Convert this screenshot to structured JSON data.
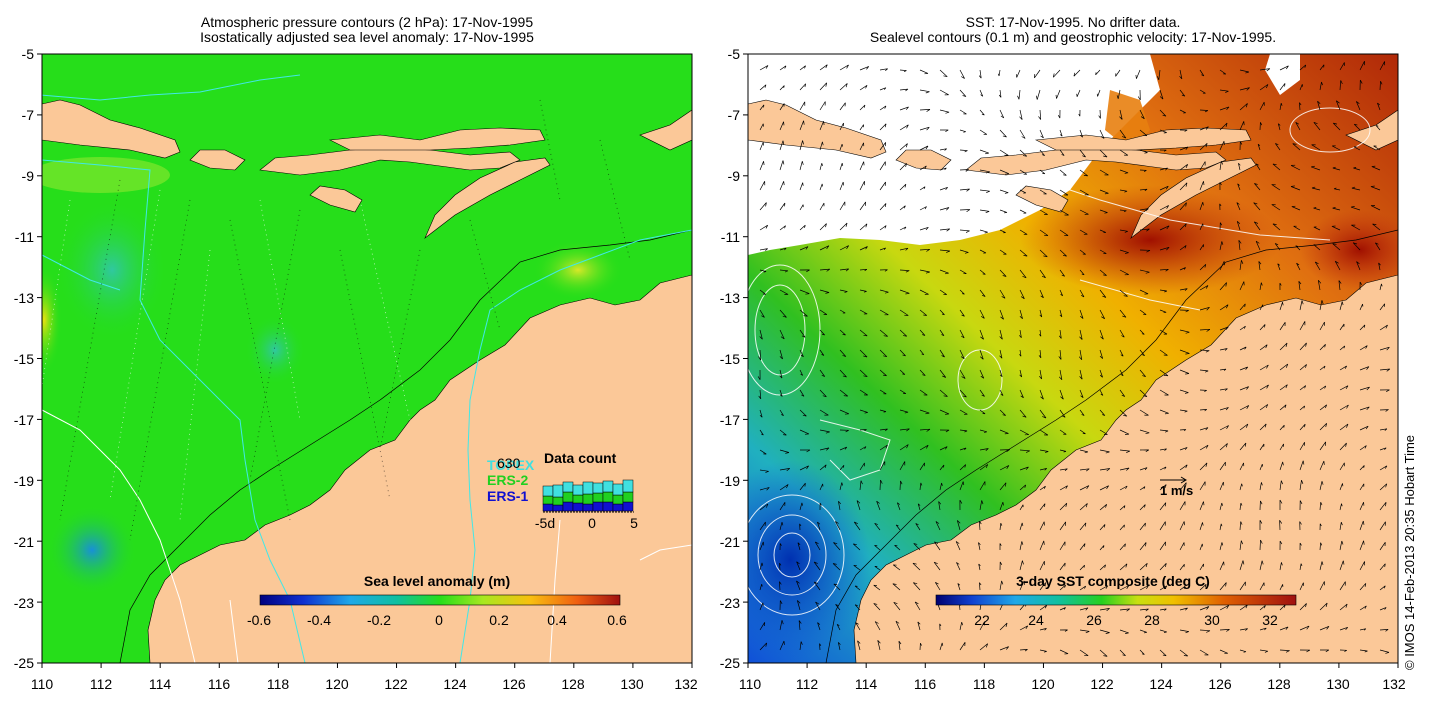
{
  "left_map": {
    "title_line1": "Atmospheric pressure contours (2 hPa): 17-Nov-1995",
    "title_line2": "Isostatically adjusted sea level anomaly: 17-Nov-1995",
    "lat_labels": [
      "-5",
      "-7",
      "-9",
      "-11",
      "-13",
      "-15",
      "-17",
      "-19",
      "-21",
      "-23",
      "-25"
    ],
    "lon_labels": [
      "110",
      "112",
      "114",
      "116",
      "118",
      "120",
      "122",
      "124",
      "126",
      "128",
      "130",
      "132"
    ],
    "colorbar": {
      "title": "Sea level anomaly (m)",
      "ticks": [
        "-0.6",
        "-0.4",
        "-0.2",
        "0",
        "0.2",
        "0.4",
        "0.6"
      ],
      "range": [
        -0.6,
        0.6
      ]
    },
    "data_count": {
      "title": "Data count",
      "overlay_number": "630",
      "legend": [
        "TOPEX",
        "ERS-2",
        "ERS-1"
      ],
      "axis_ticks": [
        "-5d",
        "0",
        "5"
      ],
      "legend_colors": [
        "#40e0e0",
        "#20d020",
        "#1010d0"
      ]
    }
  },
  "right_map": {
    "title_line1": "SST: 17-Nov-1995. No drifter data.",
    "title_line2": "Sealevel contours (0.1 m) and geostrophic velocity: 17-Nov-1995.",
    "lat_labels": [
      "-5",
      "-7",
      "-9",
      "-11",
      "-13",
      "-15",
      "-17",
      "-19",
      "-21",
      "-23",
      "-25"
    ],
    "lon_labels": [
      "110",
      "112",
      "114",
      "116",
      "118",
      "120",
      "122",
      "124",
      "126",
      "128",
      "130",
      "132"
    ],
    "velocity_scale_label": "1 m/s",
    "colorbar": {
      "title": "3-day SST composite (deg C)",
      "ticks": [
        "22",
        "24",
        "26",
        "28",
        "30",
        "32"
      ],
      "range": [
        20.7,
        32.8
      ]
    }
  },
  "credit": "© IMOS 14-Feb-2013 20:35 Hobart Time",
  "colors": {
    "land": "#fbc898",
    "ocean_green": "#26de1a",
    "white_mask": "#ffffff"
  }
}
